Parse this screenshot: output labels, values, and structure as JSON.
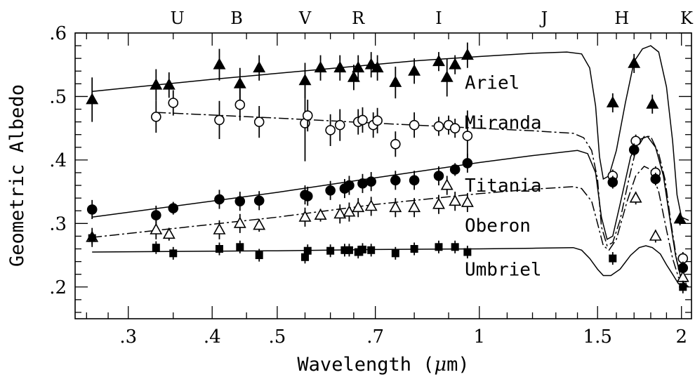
{
  "chart_data": {
    "type": "scatter",
    "xlabel_prefix": "Wavelength (",
    "xlabel_mu": "μ",
    "xlabel_suffix": "m)",
    "ylabel": "Geometric Albedo",
    "xscale": "log",
    "xlim": [
      0.25,
      2.07
    ],
    "ylim": [
      0.15,
      0.6
    ],
    "x_tick_labels": [
      {
        "x": 0.3,
        "label": ".3"
      },
      {
        "x": 0.4,
        "label": ".4"
      },
      {
        "x": 0.5,
        "label": ".5"
      },
      {
        "x": 0.7,
        "label": ".7"
      },
      {
        "x": 1.0,
        "label": "1"
      },
      {
        "x": 1.5,
        "label": "1.5"
      },
      {
        "x": 2.0,
        "label": "2"
      }
    ],
    "x_minor_ticks": [
      0.6,
      0.8,
      0.9,
      1.1,
      1.2,
      1.3,
      1.4,
      1.6,
      1.7,
      1.8,
      1.9
    ],
    "y_tick_labels": [
      {
        "y": 0.2,
        "label": ".2"
      },
      {
        "y": 0.3,
        "label": ".3"
      },
      {
        "y": 0.4,
        "label": ".4"
      },
      {
        "y": 0.5,
        "label": ".5"
      },
      {
        "y": 0.6,
        "label": ".6"
      }
    ],
    "y_minor_step": 0.02,
    "filter_bands": [
      {
        "label": "U",
        "x": 0.355
      },
      {
        "label": "B",
        "x": 0.435
      },
      {
        "label": "V",
        "x": 0.55
      },
      {
        "label": "R",
        "x": 0.66
      },
      {
        "label": "I",
        "x": 0.87
      },
      {
        "label": "J",
        "x": 1.25
      },
      {
        "label": "H",
        "x": 1.63
      },
      {
        "label": "K",
        "x": 2.18
      }
    ],
    "series": [
      {
        "name": "Ariel",
        "marker": "filled-triangle",
        "label_x": 1.0,
        "label_y": 0.522,
        "curve": [
          [
            0.265,
            0.508
          ],
          [
            0.4,
            0.527
          ],
          [
            0.6,
            0.544
          ],
          [
            0.8,
            0.556
          ],
          [
            1.0,
            0.563
          ],
          [
            1.2,
            0.568
          ],
          [
            1.35,
            0.57
          ],
          [
            1.42,
            0.567
          ],
          [
            1.46,
            0.545
          ],
          [
            1.49,
            0.485
          ],
          [
            1.51,
            0.405
          ],
          [
            1.53,
            0.37
          ],
          [
            1.56,
            0.375
          ],
          [
            1.6,
            0.415
          ],
          [
            1.65,
            0.49
          ],
          [
            1.7,
            0.555
          ],
          [
            1.75,
            0.575
          ],
          [
            1.8,
            0.58
          ],
          [
            1.85,
            0.57
          ],
          [
            1.9,
            0.515
          ],
          [
            1.94,
            0.43
          ],
          [
            1.97,
            0.345
          ],
          [
            2.0,
            0.31
          ],
          [
            2.05,
            0.305
          ]
        ],
        "points": [
          [
            0.265,
            0.495
          ],
          [
            0.33,
            0.518
          ],
          [
            0.345,
            0.518
          ],
          [
            0.41,
            0.55
          ],
          [
            0.44,
            0.52
          ],
          [
            0.47,
            0.545
          ],
          [
            0.55,
            0.525
          ],
          [
            0.58,
            0.545
          ],
          [
            0.62,
            0.545
          ],
          [
            0.65,
            0.53
          ],
          [
            0.66,
            0.545
          ],
          [
            0.69,
            0.55
          ],
          [
            0.705,
            0.545
          ],
          [
            0.75,
            0.522
          ],
          [
            0.8,
            0.54
          ],
          [
            0.87,
            0.555
          ],
          [
            0.895,
            0.53
          ],
          [
            0.92,
            0.55
          ],
          [
            0.96,
            0.565
          ],
          [
            1.58,
            0.49
          ],
          [
            1.7,
            0.552
          ],
          [
            1.81,
            0.488
          ],
          [
            1.99,
            0.307
          ]
        ],
        "err": [
          0.035,
          0.025,
          0.02,
          0.025,
          0.025,
          0.02,
          0.028,
          0.02,
          0.02,
          0.02,
          0.02,
          0.02,
          0.02,
          0.025,
          0.02,
          0.015,
          0.03,
          0.015,
          0.02,
          0.015,
          0.015,
          0.015,
          0.01
        ]
      },
      {
        "name": "Miranda",
        "marker": "open-circle",
        "label_x": 1.0,
        "label_y": 0.459,
        "curve": [
          [
            0.33,
            0.475
          ],
          [
            0.5,
            0.466
          ],
          [
            0.7,
            0.458
          ],
          [
            1.0,
            0.45
          ],
          [
            1.2,
            0.446
          ],
          [
            1.38,
            0.442
          ],
          [
            1.43,
            0.435
          ],
          [
            1.47,
            0.415
          ],
          [
            1.5,
            0.37
          ],
          [
            1.52,
            0.295
          ],
          [
            1.55,
            0.265
          ],
          [
            1.58,
            0.27
          ],
          [
            1.62,
            0.305
          ],
          [
            1.67,
            0.37
          ],
          [
            1.71,
            0.415
          ],
          [
            1.76,
            0.437
          ],
          [
            1.8,
            0.437
          ],
          [
            1.85,
            0.41
          ],
          [
            1.89,
            0.37
          ],
          [
            1.93,
            0.3
          ],
          [
            1.97,
            0.24
          ],
          [
            2.0,
            0.215
          ],
          [
            2.05,
            0.21
          ]
        ],
        "points": [
          [
            0.33,
            0.468
          ],
          [
            0.35,
            0.49
          ],
          [
            0.41,
            0.463
          ],
          [
            0.44,
            0.487
          ],
          [
            0.47,
            0.46
          ],
          [
            0.55,
            0.458
          ],
          [
            0.555,
            0.47
          ],
          [
            0.6,
            0.447
          ],
          [
            0.62,
            0.455
          ],
          [
            0.66,
            0.46
          ],
          [
            0.67,
            0.463
          ],
          [
            0.695,
            0.455
          ],
          [
            0.705,
            0.462
          ],
          [
            0.75,
            0.425
          ],
          [
            0.8,
            0.455
          ],
          [
            0.87,
            0.453
          ],
          [
            0.9,
            0.455
          ],
          [
            0.92,
            0.45
          ],
          [
            0.96,
            0.438
          ],
          [
            1.58,
            0.375
          ],
          [
            1.71,
            0.43
          ],
          [
            1.83,
            0.38
          ],
          [
            2.01,
            0.245
          ]
        ],
        "err": [
          0.025,
          0.02,
          0.03,
          0.025,
          0.025,
          0.06,
          0.025,
          0.025,
          0.025,
          0.02,
          0.02,
          0.02,
          0.02,
          0.02,
          0.02,
          0.015,
          0.015,
          0.015,
          0.04,
          0.01,
          0.01,
          0.01,
          0.01
        ]
      },
      {
        "name": "Titania",
        "marker": "filled-circle",
        "label_x": 1.0,
        "label_y": 0.36,
        "curve": [
          [
            0.265,
            0.31
          ],
          [
            0.5,
            0.349
          ],
          [
            0.7,
            0.372
          ],
          [
            1.0,
            0.396
          ],
          [
            1.2,
            0.407
          ],
          [
            1.4,
            0.415
          ],
          [
            1.45,
            0.41
          ],
          [
            1.49,
            0.38
          ],
          [
            1.52,
            0.31
          ],
          [
            1.55,
            0.275
          ],
          [
            1.58,
            0.28
          ],
          [
            1.62,
            0.33
          ],
          [
            1.68,
            0.405
          ],
          [
            1.73,
            0.432
          ],
          [
            1.78,
            0.437
          ],
          [
            1.83,
            0.42
          ],
          [
            1.88,
            0.375
          ],
          [
            1.92,
            0.31
          ],
          [
            1.96,
            0.25
          ],
          [
            2.0,
            0.21
          ],
          [
            2.05,
            0.2
          ]
        ],
        "points": [
          [
            0.265,
            0.322
          ],
          [
            0.33,
            0.313
          ],
          [
            0.35,
            0.324
          ],
          [
            0.41,
            0.338
          ],
          [
            0.44,
            0.335
          ],
          [
            0.47,
            0.336
          ],
          [
            0.55,
            0.345
          ],
          [
            0.555,
            0.343
          ],
          [
            0.6,
            0.352
          ],
          [
            0.63,
            0.355
          ],
          [
            0.64,
            0.36
          ],
          [
            0.67,
            0.363
          ],
          [
            0.69,
            0.366
          ],
          [
            0.75,
            0.368
          ],
          [
            0.8,
            0.368
          ],
          [
            0.87,
            0.375
          ],
          [
            0.92,
            0.385
          ],
          [
            0.96,
            0.395
          ],
          [
            1.58,
            0.365
          ],
          [
            1.7,
            0.416
          ],
          [
            1.83,
            0.37
          ],
          [
            2.01,
            0.23
          ]
        ],
        "err": [
          0.015,
          0.015,
          0.01,
          0.015,
          0.015,
          0.015,
          0.015,
          0.015,
          0.015,
          0.015,
          0.015,
          0.015,
          0.015,
          0.015,
          0.015,
          0.015,
          0.01,
          0.015,
          0.01,
          0.01,
          0.01,
          0.01
        ]
      },
      {
        "name": "Oberon",
        "marker": "open-triangle",
        "label_x": 1.0,
        "label_y": 0.297,
        "curve": [
          [
            0.265,
            0.278
          ],
          [
            0.5,
            0.31
          ],
          [
            0.7,
            0.33
          ],
          [
            1.0,
            0.347
          ],
          [
            1.2,
            0.354
          ],
          [
            1.38,
            0.358
          ],
          [
            1.42,
            0.355
          ],
          [
            1.47,
            0.335
          ],
          [
            1.5,
            0.3
          ],
          [
            1.53,
            0.265
          ],
          [
            1.56,
            0.258
          ],
          [
            1.6,
            0.275
          ],
          [
            1.66,
            0.335
          ],
          [
            1.71,
            0.375
          ],
          [
            1.76,
            0.39
          ],
          [
            1.8,
            0.385
          ],
          [
            1.85,
            0.35
          ],
          [
            1.9,
            0.29
          ],
          [
            1.94,
            0.245
          ],
          [
            1.98,
            0.215
          ],
          [
            2.05,
            0.205
          ]
        ],
        "points": [
          [
            0.265,
            0.278
          ],
          [
            0.33,
            0.29
          ],
          [
            0.345,
            0.283
          ],
          [
            0.41,
            0.29
          ],
          [
            0.44,
            0.3
          ],
          [
            0.47,
            0.297
          ],
          [
            0.55,
            0.31
          ],
          [
            0.58,
            0.313
          ],
          [
            0.62,
            0.315
          ],
          [
            0.64,
            0.318
          ],
          [
            0.66,
            0.325
          ],
          [
            0.69,
            0.327
          ],
          [
            0.75,
            0.325
          ],
          [
            0.8,
            0.325
          ],
          [
            0.87,
            0.33
          ],
          [
            0.895,
            0.36
          ],
          [
            0.92,
            0.335
          ],
          [
            0.96,
            0.333
          ],
          [
            1.71,
            0.34
          ],
          [
            1.83,
            0.28
          ],
          [
            2.01,
            0.215
          ]
        ],
        "err": [
          0.015,
          0.015,
          0.01,
          0.015,
          0.015,
          0.01,
          0.015,
          0.01,
          0.015,
          0.015,
          0.015,
          0.015,
          0.015,
          0.015,
          0.015,
          0.015,
          0.015,
          0.015,
          0.01,
          0.01,
          0.01
        ]
      },
      {
        "name": "Umbriel",
        "marker": "filled-square",
        "label_x": 1.0,
        "label_y": 0.228,
        "curve": [
          [
            0.265,
            0.255
          ],
          [
            0.5,
            0.257
          ],
          [
            0.7,
            0.259
          ],
          [
            1.0,
            0.26
          ],
          [
            1.2,
            0.261
          ],
          [
            1.38,
            0.262
          ],
          [
            1.42,
            0.258
          ],
          [
            1.46,
            0.245
          ],
          [
            1.5,
            0.228
          ],
          [
            1.53,
            0.218
          ],
          [
            1.57,
            0.218
          ],
          [
            1.62,
            0.228
          ],
          [
            1.68,
            0.25
          ],
          [
            1.73,
            0.262
          ],
          [
            1.77,
            0.265
          ],
          [
            1.81,
            0.262
          ],
          [
            1.86,
            0.252
          ],
          [
            1.9,
            0.235
          ],
          [
            1.94,
            0.22
          ],
          [
            1.98,
            0.205
          ],
          [
            2.05,
            0.2
          ]
        ],
        "points": [
          [
            0.265,
            0.277
          ],
          [
            0.33,
            0.262
          ],
          [
            0.35,
            0.253
          ],
          [
            0.41,
            0.26
          ],
          [
            0.44,
            0.263
          ],
          [
            0.47,
            0.25
          ],
          [
            0.55,
            0.247
          ],
          [
            0.555,
            0.257
          ],
          [
            0.6,
            0.257
          ],
          [
            0.63,
            0.258
          ],
          [
            0.64,
            0.258
          ],
          [
            0.66,
            0.255
          ],
          [
            0.67,
            0.259
          ],
          [
            0.69,
            0.258
          ],
          [
            0.75,
            0.253
          ],
          [
            0.8,
            0.26
          ],
          [
            0.87,
            0.263
          ],
          [
            0.92,
            0.263
          ],
          [
            0.96,
            0.255
          ],
          [
            1.58,
            0.245
          ],
          [
            2.01,
            0.2
          ]
        ],
        "err": [
          0.01,
          0.01,
          0.01,
          0.01,
          0.01,
          0.01,
          0.01,
          0.01,
          0.01,
          0.01,
          0.01,
          0.01,
          0.01,
          0.01,
          0.01,
          0.01,
          0.01,
          0.01,
          0.01,
          0.01,
          0.01
        ]
      }
    ]
  }
}
